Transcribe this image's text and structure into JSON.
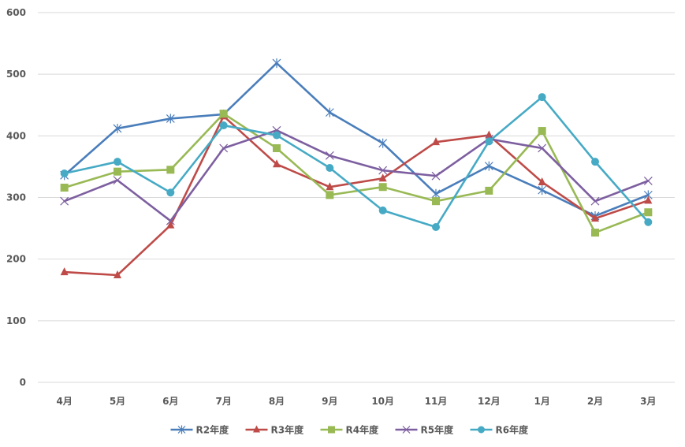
{
  "chart_data": {
    "type": "line",
    "title": "",
    "xlabel": "",
    "ylabel": "",
    "categories": [
      "4月",
      "5月",
      "6月",
      "7月",
      "8月",
      "9月",
      "10月",
      "11月",
      "12月",
      "1月",
      "2月",
      "3月"
    ],
    "ylim": [
      0,
      600
    ],
    "yticks": [
      0,
      100,
      200,
      300,
      400,
      500,
      600
    ],
    "grid": true,
    "legend_position": "bottom",
    "series": [
      {
        "name": "R2年度",
        "color": "#4a7ebb",
        "marker": "star",
        "values": [
          336,
          412,
          428,
          435,
          518,
          438,
          388,
          306,
          351,
          312,
          270,
          304
        ]
      },
      {
        "name": "R3年度",
        "color": "#be4b48",
        "marker": "triangle",
        "values": [
          179,
          174,
          255,
          432,
          354,
          317,
          331,
          390,
          401,
          325,
          266,
          295
        ]
      },
      {
        "name": "R4年度",
        "color": "#98b954",
        "marker": "square",
        "values": [
          316,
          342,
          345,
          436,
          380,
          304,
          317,
          294,
          311,
          408,
          243,
          276
        ]
      },
      {
        "name": "R5年度",
        "color": "#7d5fa0",
        "marker": "x",
        "values": [
          294,
          328,
          262,
          380,
          409,
          368,
          344,
          335,
          395,
          380,
          294,
          327
        ]
      },
      {
        "name": "R6年度",
        "color": "#46aac5",
        "marker": "circle",
        "values": [
          339,
          358,
          308,
          417,
          401,
          348,
          279,
          252,
          391,
          463,
          358,
          260
        ]
      }
    ]
  }
}
